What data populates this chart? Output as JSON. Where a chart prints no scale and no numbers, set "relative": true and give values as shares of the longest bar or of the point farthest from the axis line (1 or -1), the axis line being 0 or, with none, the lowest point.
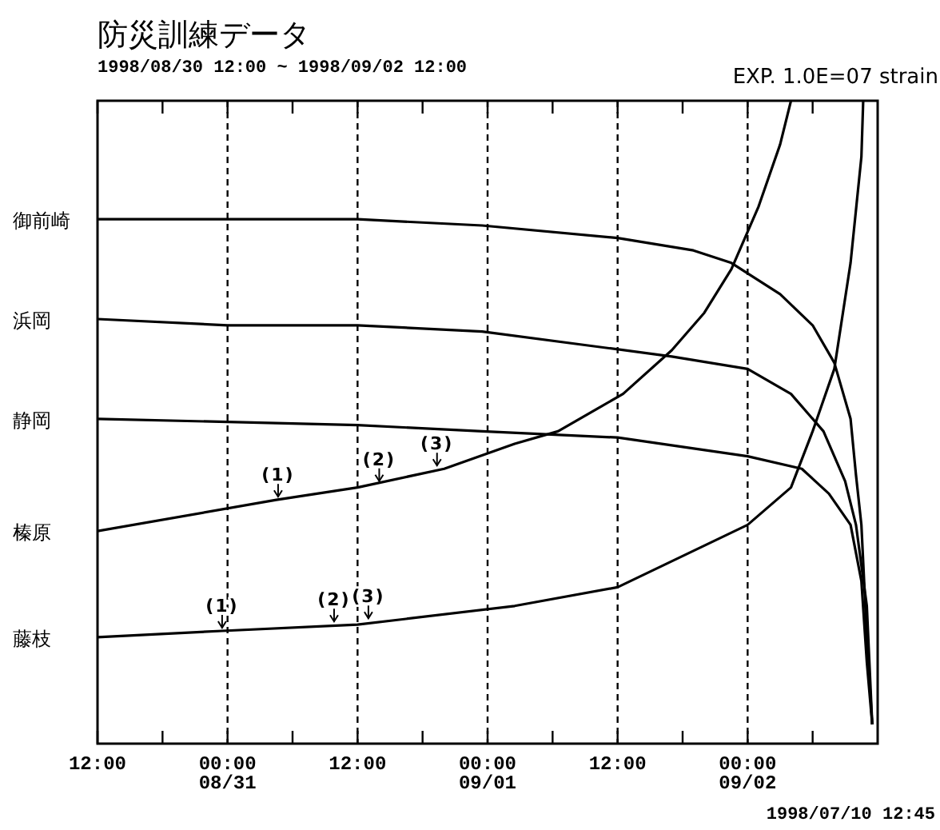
{
  "chart_data": {
    "type": "line",
    "title": "防災訓練データ",
    "subtitle": "1998/08/30 12:00 ~ 1998/09/02 12:00",
    "relative": true,
    "grid": "x",
    "xlim": [
      "1998-08-30T12:00",
      "1998-09-02T12:00"
    ],
    "xticks": [
      {
        "value": "1998-08-30T12:00",
        "label": "12:00"
      },
      {
        "value": "1998-08-30T18:00",
        "label": null
      },
      {
        "value": "1998-08-31T00:00",
        "label": "00:00 08/31"
      },
      {
        "value": "1998-08-31T06:00",
        "label": null
      },
      {
        "value": "1998-08-31T12:00",
        "label": "12:00"
      },
      {
        "value": "1998-08-31T18:00",
        "label": null
      },
      {
        "value": "1998-09-01T00:00",
        "label": "00:00 09/01"
      },
      {
        "value": "1998-09-01T06:00",
        "label": null
      },
      {
        "value": "1998-09-01T12:00",
        "label": "12:00"
      },
      {
        "value": "1998-09-01T18:00",
        "label": null
      },
      {
        "value": "1998-09-02T00:00",
        "label": "00:00 09/02"
      },
      {
        "value": "1998-09-02T06:00",
        "label": null
      }
    ],
    "series": [
      {
        "name": "御前崎",
        "color": "#000000",
        "x": [
          "1998-08-30T12:00",
          "1998-08-31T12:00",
          "1998-08-31T23:30",
          "1998-09-01T12:00",
          "1998-09-01T19:00",
          "1998-09-01T22:30",
          "1998-09-02T03:00",
          "1998-09-02T06:00",
          "1998-09-02T08:00",
          "1998-09-02T09:30",
          "1998-09-02T10:00",
          "1998-09-02T10:30",
          "1998-09-02T11:00",
          "1998-09-02T11:30"
        ],
        "values": [
          0.81,
          0.81,
          0.8,
          0.78,
          0.76,
          0.74,
          0.69,
          0.64,
          0.58,
          0.49,
          0.4,
          0.32,
          0.14,
          0
        ]
      },
      {
        "name": "浜岡",
        "color": "#000000",
        "x": [
          "1998-08-30T12:00",
          "1998-08-31T00:00",
          "1998-08-31T12:00",
          "1998-08-31T23:30",
          "1998-09-01T17:00",
          "1998-09-02T00:00",
          "1998-09-02T04:00",
          "1998-09-02T07:00",
          "1998-09-02T09:00",
          "1998-09-02T10:00",
          "1998-09-02T11:00",
          "1998-09-02T11:30"
        ],
        "values": [
          0.65,
          0.64,
          0.64,
          0.63,
          0.59,
          0.57,
          0.53,
          0.47,
          0.39,
          0.32,
          0.19,
          0
        ]
      },
      {
        "name": "静岡",
        "color": "#000000",
        "x": [
          "1998-08-30T12:00",
          "1998-08-31T12:00",
          "1998-08-31T23:30",
          "1998-09-01T12:00",
          "1998-09-02T00:00",
          "1998-09-02T05:00",
          "1998-09-02T07:30",
          "1998-09-02T09:30",
          "1998-09-02T10:30",
          "1998-09-02T11:00",
          "1998-09-02T11:30"
        ],
        "values": [
          0.49,
          0.48,
          0.47,
          0.46,
          0.43,
          0.41,
          0.37,
          0.32,
          0.23,
          0.1,
          0
        ]
      },
      {
        "name": "榛原",
        "color": "#000000",
        "x": [
          "1998-08-30T12:00",
          "1998-08-31T04:30",
          "1998-08-31T12:00",
          "1998-08-31T20:00",
          "1998-09-01T02:30",
          "1998-09-01T06:30",
          "1998-09-01T12:30",
          "1998-09-01T17:00",
          "1998-09-01T20:00",
          "1998-09-01T22:30",
          "1998-09-02T01:00",
          "1998-09-02T03:00",
          "1998-09-02T04:00"
        ],
        "values": [
          0.31,
          0.36,
          0.38,
          0.41,
          0.45,
          0.47,
          0.53,
          0.6,
          0.66,
          0.73,
          0.83,
          0.93,
          1
        ]
      },
      {
        "name": "藤枝",
        "color": "#000000",
        "x": [
          "1998-08-30T12:00",
          "1998-08-30T23:30",
          "1998-08-31T12:00",
          "1998-09-01T02:30",
          "1998-09-01T12:00",
          "1998-09-02T00:00",
          "1998-09-02T04:00",
          "1998-09-02T06:00",
          "1998-09-02T08:00",
          "1998-09-02T09:30",
          "1998-09-02T10:30",
          "1998-09-02T10:40"
        ],
        "values": [
          0.14,
          0.15,
          0.16,
          0.19,
          0.22,
          0.32,
          0.38,
          0.47,
          0.57,
          0.74,
          0.91,
          1
        ]
      }
    ],
    "annotations": [
      {
        "text": "(1)",
        "x": "1998-08-31T04:40",
        "y": 0.36
      },
      {
        "text": "(2)",
        "x": "1998-08-31T14:00",
        "y": 0.385
      },
      {
        "text": "(3)",
        "x": "1998-08-31T19:20",
        "y": 0.41
      },
      {
        "text": "(1)",
        "x": "1998-08-30T23:30",
        "y": 0.15
      },
      {
        "text": "(2)",
        "x": "1998-08-31T09:50",
        "y": 0.16
      },
      {
        "text": "(3)",
        "x": "1998-08-31T13:00",
        "y": 0.165
      },
      "EXP. 1.0E=07 strain",
      "1998/07/10 12:45"
    ]
  }
}
